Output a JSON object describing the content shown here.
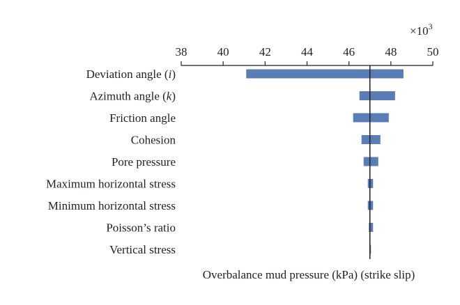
{
  "chart_data": {
    "type": "bar",
    "orientation": "horizontal",
    "chart_style": "tornado",
    "xlabel": "Overbalance mud pressure (kPa) (strike slip)",
    "axis_multiplier": "×10",
    "axis_multiplier_exponent": "3",
    "xlim": [
      38,
      50
    ],
    "xticks": [
      "38",
      "40",
      "42",
      "44",
      "46",
      "48",
      "50"
    ],
    "xtick_values": [
      38,
      40,
      42,
      44,
      46,
      48,
      50
    ],
    "x_axis_position": "top",
    "baseline": 47.0,
    "bar_color": "#5b7db5",
    "grid": false,
    "categories": [
      {
        "label": "Deviation angle (",
        "italic": "i",
        "suffix": ")"
      },
      {
        "label": "Azimuth angle (",
        "italic": "k",
        "suffix": ")"
      },
      {
        "label": "Friction angle",
        "italic": "",
        "suffix": ""
      },
      {
        "label": "Cohesion",
        "italic": "",
        "suffix": ""
      },
      {
        "label": "Pore pressure",
        "italic": "",
        "suffix": ""
      },
      {
        "label": "Maximum horizontal stress",
        "italic": "",
        "suffix": ""
      },
      {
        "label": "Minimum horizontal stress",
        "italic": "",
        "suffix": ""
      },
      {
        "label": "Poisson’s ratio",
        "italic": "",
        "suffix": ""
      },
      {
        "label": "Vertical stress",
        "italic": "",
        "suffix": ""
      }
    ],
    "ranges": [
      [
        41.1,
        48.6
      ],
      [
        46.5,
        48.2
      ],
      [
        46.2,
        47.9
      ],
      [
        46.6,
        47.5
      ],
      [
        46.7,
        47.4
      ],
      [
        46.9,
        47.15
      ],
      [
        46.9,
        47.15
      ],
      [
        46.95,
        47.15
      ],
      [
        47.0,
        47.05
      ]
    ]
  }
}
